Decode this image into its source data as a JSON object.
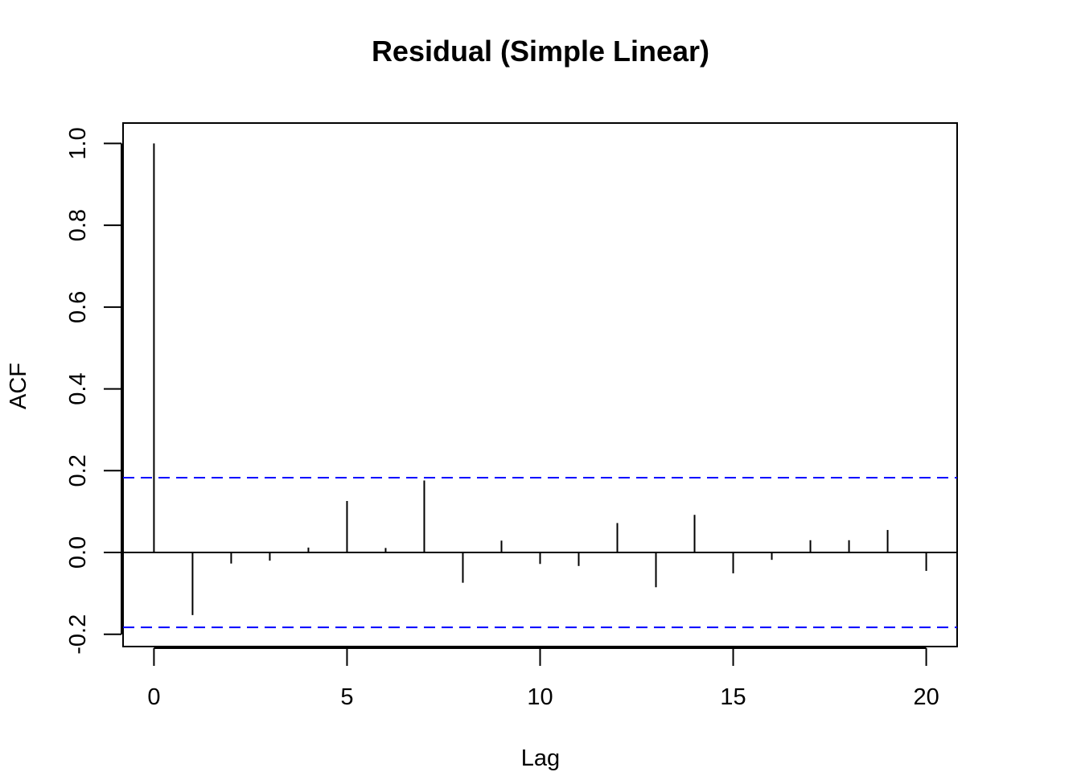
{
  "chart_data": {
    "type": "bar",
    "title": "Residual (Simple Linear)",
    "xlabel": "Lag",
    "ylabel": "ACF",
    "xlim": [
      -0.8,
      20.8
    ],
    "ylim": [
      -0.23,
      1.05
    ],
    "x_ticks": [
      0,
      5,
      10,
      15,
      20
    ],
    "x_tick_labels": [
      "0",
      "5",
      "10",
      "15",
      "20"
    ],
    "y_ticks": [
      -0.2,
      0.0,
      0.2,
      0.4,
      0.6,
      0.8,
      1.0
    ],
    "y_tick_labels": [
      "-0.2",
      "0.0",
      "0.2",
      "0.4",
      "0.6",
      "0.8",
      "1.0"
    ],
    "lags": [
      0,
      1,
      2,
      3,
      4,
      5,
      6,
      7,
      8,
      9,
      10,
      11,
      12,
      13,
      14,
      15,
      16,
      17,
      18,
      19,
      20
    ],
    "acf": [
      1.0,
      -0.153,
      -0.027,
      -0.02,
      0.012,
      0.126,
      0.011,
      0.176,
      -0.074,
      0.029,
      -0.028,
      -0.033,
      0.072,
      -0.085,
      0.092,
      -0.051,
      -0.018,
      0.03,
      0.03,
      0.055,
      -0.045
    ],
    "confidence_bound": 0.183,
    "colors": {
      "bars": "#000000",
      "confidence": "#0000ff",
      "zero_line": "#000000"
    }
  }
}
